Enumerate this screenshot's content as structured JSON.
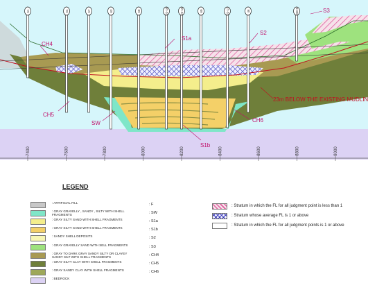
{
  "section": {
    "boreholes": [
      {
        "label": "SB1",
        "top_label": "51"
      },
      {
        "label": "SB2",
        "top_label": "54"
      },
      {
        "label": "SB3",
        "top_label": "57"
      },
      {
        "label": "SB4",
        "top_label": "63"
      },
      {
        "label": "SB5",
        "top_label": "58"
      },
      {
        "label": "SB6",
        "top_label": "J2-18"
      },
      {
        "label": "SB7",
        "top_label": "J2-15"
      },
      {
        "label": "SB8",
        "top_label": "60"
      },
      {
        "label": "SB9",
        "top_label": "J2-17"
      },
      {
        "label": "SB10",
        "top_label": "46"
      },
      {
        "label": "SB11",
        "top_label": "SB-8"
      }
    ],
    "stratum_tags": {
      "s3": "S3",
      "ch4": "CH4",
      "s1a": "S1a",
      "s2": "S2",
      "ch5": "CH5",
      "sw": "SW",
      "ch6": "CH6",
      "s1b": "S1b"
    },
    "mudline_label": "23m BELOW THE EXISTING MUDLINE",
    "x_ticks": [
      "7400",
      "7600",
      "7800",
      "8000",
      "8200",
      "8400",
      "8600",
      "8800",
      "9000",
      "9200"
    ]
  },
  "legend": {
    "title": "LEGEND",
    "items": [
      {
        "text": ": ARTIFICIAL FILL",
        "code": ": F",
        "color": "#c8c8c8"
      },
      {
        "text": ": GRAY GRAVELLY , SANDY , SILTY WITH SHELL FRAGMENTS",
        "code": ": SW",
        "color": "#7fe6c8"
      },
      {
        "text": ": GRAY SILTY SAND WITH SHELL FRAGMENTS",
        "code": ": S1a",
        "color": "#f4ee8c"
      },
      {
        "text": ": GRAY SILTY SAND WITH SHELL FRAGMENTS",
        "code": ": S1b",
        "color": "#f4d068"
      },
      {
        "text": ": SANDY SHELL DEPOSITS",
        "code": ": S2",
        "color": "#f7f6b4"
      },
      {
        "text": ": GRAY GRAVELLY SAND WITH SELL FRAGMENTS",
        "code": ": S3",
        "color": "#9ee27e"
      },
      {
        "text": ": GRAY TO DARK GRAY SANDY SILTY OR CLAYEY SANDY SILT WITH SHELL FRAGMENTS",
        "code": ": CH4",
        "color": "#a89a52"
      },
      {
        "text": ": GRAY SILTY CLAY WITH SHELL FRAGMENTS",
        "code": ": CH5",
        "color": "#6f7f3a"
      },
      {
        "text": ": GRAY SANDY CLAY WITH SHELL FRAGMENTS",
        "code": ": CH6",
        "color": "#9ea85a"
      },
      {
        "text": ": BEDROCK",
        "code": "",
        "color": "#dcd2f4"
      }
    ]
  },
  "fl_legend": [
    {
      "text": ": Stratum in which the FL for all judgment point is less than 1",
      "pattern": "hatch"
    },
    {
      "text": ": Stratum whose average FL is 1 or above",
      "pattern": "cross"
    },
    {
      "text": ": Stratum in which the FL for all judgment points is 1 or above",
      "pattern": "plain"
    }
  ],
  "colors": {
    "water": "#d6f6fb",
    "bedrock": "#dcd2f4",
    "label_magenta": "#c0106a",
    "mudline_red": "#c01020",
    "hatch": "#e060a0",
    "crosshatch": "#3a3ab8"
  }
}
